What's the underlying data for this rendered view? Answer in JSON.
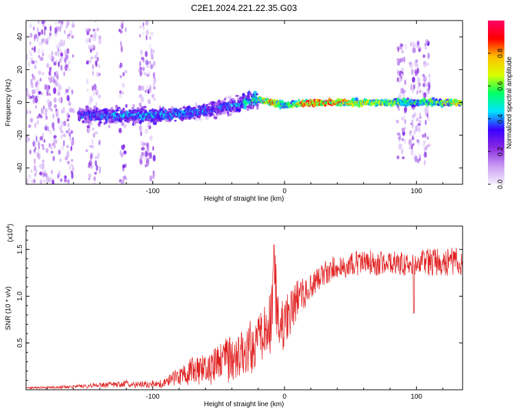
{
  "title": "C2E1.2024.221.22.35.G03",
  "chart_data": [
    {
      "type": "heatmap",
      "xlabel": "Height of straight line (km)",
      "ylabel": "Frequency (Hz)",
      "xlim": [
        -196,
        135
      ],
      "ylim": [
        -50,
        50
      ],
      "x_ticks": [
        -100,
        0,
        100
      ],
      "y_ticks": [
        -40,
        -20,
        0,
        20,
        40
      ],
      "grid": false,
      "colorbar": {
        "label": "Normalized spectral amplitude",
        "range": [
          0,
          1
        ],
        "ticks": [
          0.0,
          0.2,
          0.4,
          0.6,
          0.8
        ],
        "colors": [
          "#f4f0ff",
          "#c99cf2",
          "#8a2be2",
          "#3b00ff",
          "#00e5ff",
          "#00ff66",
          "#d8ff00",
          "#ffc000",
          "#ff0000",
          "#ff0066"
        ]
      },
      "ridge": {
        "x": [
          -196,
          -150,
          -120,
          -100,
          -80,
          -60,
          -40,
          -20,
          -10,
          0,
          20,
          60,
          100,
          135
        ],
        "freq": [
          -8,
          -8,
          -8,
          -8,
          -7,
          -5,
          -2,
          2,
          0,
          -2,
          0,
          0,
          0,
          0
        ],
        "amplitude": [
          0.35,
          0.4,
          0.45,
          0.45,
          0.45,
          0.4,
          0.4,
          0.6,
          0.9,
          0.5,
          0.95,
          0.7,
          0.55,
          0.75
        ]
      },
      "noise_bands": [
        [
          -196,
          -160
        ],
        [
          -150,
          -140
        ],
        [
          -125,
          -120
        ],
        [
          -110,
          -98
        ],
        [
          85,
          92
        ],
        [
          95,
          103
        ],
        [
          105,
          110
        ]
      ]
    },
    {
      "type": "line",
      "xlabel": "Height of straight line (km)",
      "ylabel": "SNR (10 * v/v)",
      "y_multiplier": "(x10",
      "y_multiplier_exp": "4",
      "y_multiplier_close": ")",
      "xlim": [
        -196,
        135
      ],
      "ylim": [
        0,
        1.75
      ],
      "x_ticks": [
        -100,
        0,
        100
      ],
      "y_ticks": [
        0.5,
        1.0,
        1.5
      ],
      "grid": false,
      "series": [
        {
          "color": "#e02020",
          "x": [
            -196,
            -160,
            -140,
            -120,
            -100,
            -90,
            -85,
            -80,
            -70,
            -60,
            -50,
            -40,
            -30,
            -20,
            -15,
            -10,
            -8,
            -6,
            -4,
            0,
            10,
            20,
            30,
            40,
            50,
            60,
            70,
            80,
            90,
            100,
            110,
            120,
            135
          ],
          "y": [
            0.02,
            0.03,
            0.05,
            0.06,
            0.06,
            0.07,
            0.12,
            0.15,
            0.2,
            0.22,
            0.28,
            0.35,
            0.4,
            0.5,
            0.62,
            0.8,
            1.3,
            0.9,
            0.65,
            0.7,
            0.98,
            1.1,
            1.25,
            1.3,
            1.33,
            1.37,
            1.35,
            1.35,
            1.36,
            1.35,
            1.38,
            1.37,
            1.36
          ],
          "spread": [
            0.01,
            0.02,
            0.03,
            0.04,
            0.04,
            0.05,
            0.08,
            0.1,
            0.15,
            0.18,
            0.22,
            0.28,
            0.3,
            0.35,
            0.35,
            0.4,
            0.4,
            0.35,
            0.3,
            0.3,
            0.22,
            0.15,
            0.15,
            0.14,
            0.14,
            0.14,
            0.14,
            0.14,
            0.14,
            0.14,
            0.16,
            0.16,
            0.16
          ]
        }
      ]
    }
  ]
}
